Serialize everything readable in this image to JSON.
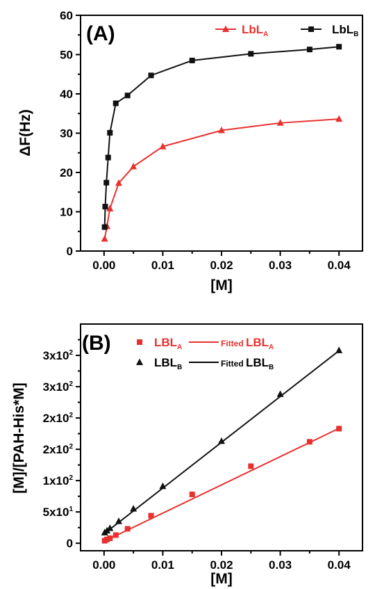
{
  "chart_data": [
    {
      "type": "line",
      "panel_label": "(A)",
      "xlabel": "[M]",
      "ylabel": "ΔF(Hz)",
      "xlim": [
        -0.004,
        0.044
      ],
      "ylim": [
        0,
        60
      ],
      "xticks": [
        0,
        0.01,
        0.02,
        0.03,
        0.04
      ],
      "xtick_labels": [
        "0.00",
        "0.01",
        "0.02",
        "0.03",
        "0.04"
      ],
      "yticks": [
        0,
        10,
        20,
        30,
        40,
        50,
        60
      ],
      "ytick_labels": [
        "0",
        "10",
        "20",
        "30",
        "40",
        "50",
        "60"
      ],
      "legend_position": "top-right",
      "series": [
        {
          "name": "LbL",
          "name_sub": "A",
          "color": "#e8312f",
          "marker": "triangle",
          "x": [
            0.0001,
            0.0005,
            0.001,
            0.0025,
            0.005,
            0.01,
            0.02,
            0.03,
            0.04
          ],
          "y": [
            3.1,
            6.3,
            10.8,
            17.3,
            21.5,
            26.6,
            30.7,
            32.6,
            33.6
          ]
        },
        {
          "name": "LbL",
          "name_sub": "B",
          "color": "#111111",
          "marker": "square",
          "x": [
            0.0001,
            0.0002,
            0.0004,
            0.0007,
            0.001,
            0.002,
            0.004,
            0.008,
            0.015,
            0.025,
            0.035,
            0.04
          ],
          "y": [
            6.1,
            11.3,
            17.4,
            23.8,
            30.1,
            37.6,
            39.6,
            44.7,
            48.5,
            50.2,
            51.3,
            52.0
          ]
        }
      ]
    },
    {
      "type": "scatter",
      "panel_label": "(B)",
      "xlabel": "[M]",
      "ylabel": "[M]/[PAH-His*M]",
      "xlim": [
        -0.004,
        0.044
      ],
      "ylim": [
        -12,
        350
      ],
      "xticks": [
        0,
        0.01,
        0.02,
        0.03,
        0.04
      ],
      "xtick_labels": [
        "0.00",
        "0.01",
        "0.02",
        "0.03",
        "0.04"
      ],
      "yticks": [
        0,
        50,
        100,
        150,
        200,
        250,
        300
      ],
      "ytick_labels": [
        "0",
        "5x10",
        "1x10",
        "2x10",
        "2x10",
        "3x10",
        "3x10"
      ],
      "ytick_exponents": [
        "",
        "1",
        "2",
        "2",
        "2",
        "2",
        "2"
      ],
      "legend_position": "top-left",
      "series": [
        {
          "name": "LBL",
          "name_sub": "A",
          "fit_name": "Fitted LBL",
          "fit_sub": "A",
          "color": "#e8312f",
          "marker": "square",
          "x": [
            0.0001,
            0.0005,
            0.001,
            0.002,
            0.004,
            0.008,
            0.015,
            0.025,
            0.035,
            0.04
          ],
          "y": [
            4,
            6,
            8,
            13,
            23,
            44,
            78,
            123,
            162,
            183
          ],
          "fit": [
            3,
            4510
          ]
        },
        {
          "name": "LBL",
          "name_sub": "B",
          "fit_name": "Fitted LBL",
          "fit_sub": "B",
          "color": "#111111",
          "marker": "triangle",
          "x": [
            0.0001,
            0.0005,
            0.001,
            0.0025,
            0.005,
            0.01,
            0.02,
            0.03,
            0.04
          ],
          "y": [
            17,
            20,
            24,
            35,
            55,
            91,
            163,
            238,
            308
          ],
          "fit": [
            15,
            7310
          ]
        }
      ]
    }
  ]
}
